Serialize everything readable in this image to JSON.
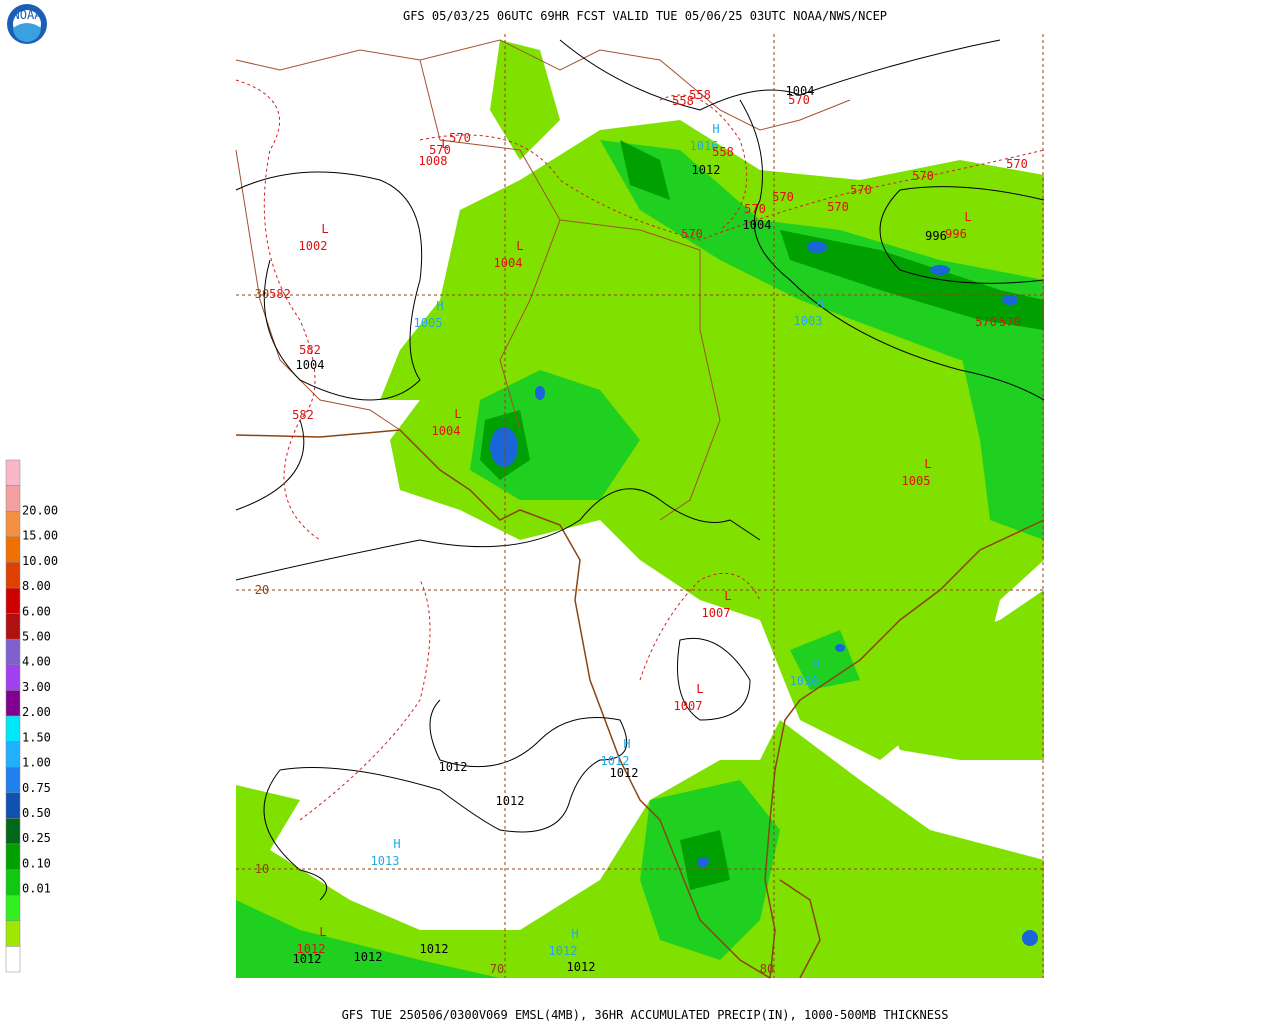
{
  "header": {
    "title": "GFS 05/03/25 06UTC 69HR FCST VALID TUE 05/06/25 03UTC NOAA/NWS/NCEP",
    "logo": "NOAA"
  },
  "footer": {
    "caption": "GFS TUE 250506/0300V069 EMSL(4MB), 36HR ACCUMULATED PRECIP(IN), 1000-500MB THICKNESS"
  },
  "legend": {
    "colors": [
      "#f8b8c8",
      "#f4a0a0",
      "#f49040",
      "#f07000",
      "#e04000",
      "#d00000",
      "#b01010",
      "#8060d0",
      "#a040f0",
      "#800090",
      "#00e8f8",
      "#20b0ff",
      "#2080f0",
      "#1050b0",
      "#006818",
      "#00a000",
      "#10c810",
      "#30f020",
      "#a0e800",
      "#ffffff"
    ],
    "labels": [
      "20.00",
      "15.00",
      "10.00",
      "8.00",
      "6.00",
      "5.00",
      "4.00",
      "3.00",
      "2.00",
      "1.50",
      "1.00",
      "0.75",
      "0.50",
      "0.25",
      "0.10",
      "0.01"
    ]
  },
  "map": {
    "centers": [
      {
        "symbol": "L",
        "value": "1002"
      },
      {
        "symbol": "L",
        "value": "1004"
      },
      {
        "symbol": "H",
        "value": "1005"
      },
      {
        "symbol": "L",
        "value": "1004"
      },
      {
        "symbol": "L",
        "value": "1005"
      },
      {
        "symbol": "L",
        "value": "1007"
      },
      {
        "symbol": "L",
        "value": "1007"
      },
      {
        "symbol": "H",
        "value": "1012"
      },
      {
        "symbol": "H",
        "value": "1013"
      },
      {
        "symbol": "H",
        "value": "1012"
      },
      {
        "symbol": "L",
        "value": "1012"
      },
      {
        "symbol": "H",
        "value": "1010"
      },
      {
        "symbol": "H",
        "value": "1003"
      },
      {
        "symbol": "H",
        "value": "1016"
      },
      {
        "symbol": "L",
        "value": "1008"
      },
      {
        "symbol": "L",
        "value": "996"
      }
    ],
    "isobar_labels": [
      "1004",
      "1012",
      "1004",
      "996",
      "1004",
      "1012",
      "1012",
      "1012",
      "1012",
      "1012",
      "1012",
      "1012"
    ],
    "thickness_labels": [
      "570",
      "570",
      "558",
      "558",
      "558",
      "570",
      "570",
      "570",
      "570",
      "570",
      "570",
      "570",
      "570",
      "570",
      "570",
      "582",
      "582",
      "582"
    ],
    "grid_labels": [
      "30",
      "20",
      "10",
      "70",
      "80"
    ]
  }
}
